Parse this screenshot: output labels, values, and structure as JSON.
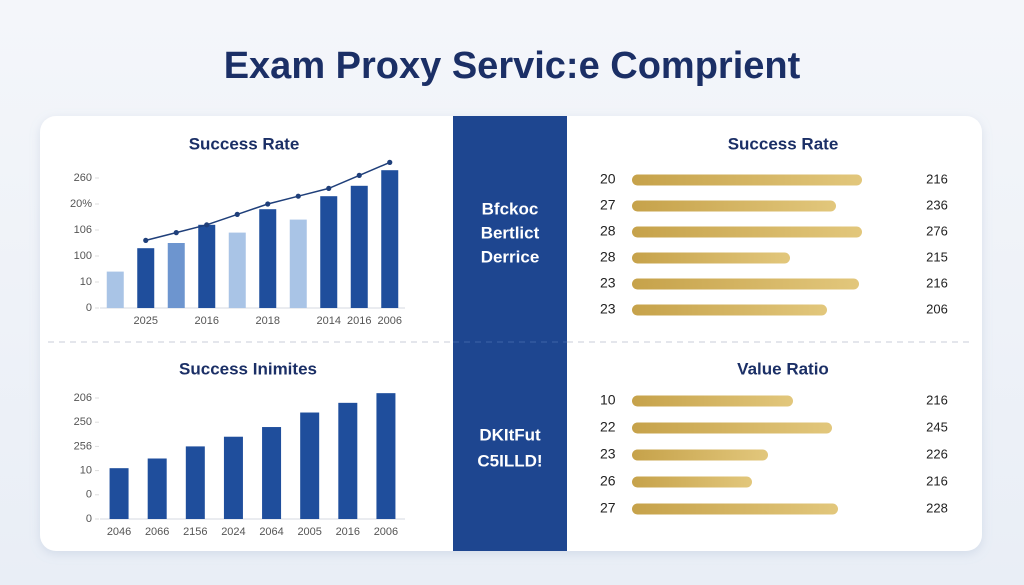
{
  "title": "Exam Proxy Servic:e Comprient",
  "center": {
    "top": [
      "Bfckoc",
      "Bertlict",
      "Derrice"
    ],
    "bottom": [
      "DKItFut",
      "C5ILLD!"
    ]
  },
  "chart_data": [
    {
      "type": "bar",
      "title": "Success Rate",
      "categories": [
        null,
        "2025",
        null,
        "2016",
        null,
        "2018",
        null,
        "2014",
        "2016",
        "2006"
      ],
      "series": [
        {
          "colors": [
            "#a9c4e6",
            "#1f4e9c",
            "#6d95cf",
            "#1f4e9c",
            "#a9c4e6",
            "#1f4e9c",
            "#a9c4e6",
            "#1f4e9c",
            "#1f4e9c",
            "#1f4e9c"
          ],
          "values": [
            1.4,
            2.3,
            2.5,
            3.2,
            2.9,
            3.8,
            3.4,
            4.3,
            4.7,
            5.3
          ]
        },
        {
          "type": "line",
          "color": "#1f3f7a",
          "values": [
            null,
            2.6,
            2.9,
            3.2,
            3.6,
            4.0,
            4.3,
            4.6,
            5.1,
            5.6
          ]
        }
      ],
      "ylim": [
        0,
        5.8
      ],
      "yticks": [
        0,
        {
          "value": 1,
          "label": "10"
        },
        {
          "value": 2,
          "label": "100"
        },
        {
          "value": 3,
          "label": "106"
        },
        {
          "value": 4,
          "label": "20%"
        },
        {
          "value": 5,
          "label": "260"
        }
      ]
    },
    {
      "type": "bar",
      "title": "Success Inimites",
      "categories": [
        "2046",
        "2066",
        "2156",
        "2024",
        "2064",
        "2005",
        "2016",
        "2006"
      ],
      "series": [
        {
          "colors": [
            "#1f4e9c",
            "#1f4e9c",
            "#1f4e9c",
            "#1f4e9c",
            "#1f4e9c",
            "#1f4e9c",
            "#1f4e9c",
            "#1f4e9c"
          ],
          "values": [
            2.1,
            2.5,
            3.0,
            3.4,
            3.8,
            4.4,
            4.8,
            5.2
          ]
        }
      ],
      "ylim": [
        0,
        5.3
      ],
      "yticks": [
        0,
        {
          "value": 1,
          "label": "0"
        },
        {
          "value": 2,
          "label": "10"
        },
        {
          "value": 3,
          "label": "256"
        },
        {
          "value": 4,
          "label": "250"
        },
        {
          "value": 5,
          "label": "206"
        }
      ]
    },
    {
      "type": "hbar",
      "title": "Success Rate",
      "categories": [
        "20",
        "27",
        "28",
        "28",
        "23",
        "23"
      ],
      "values": [
        230,
        204,
        230,
        158,
        227,
        195
      ],
      "totals": [
        216,
        236,
        276,
        215,
        216,
        206
      ],
      "xlim": [
        0,
        250
      ],
      "color": "#d2b25e"
    },
    {
      "type": "hbar",
      "title": "Value Ratio",
      "categories": [
        "10",
        "22",
        "23",
        "26",
        "27"
      ],
      "values": [
        161,
        200,
        136,
        120,
        206
      ],
      "totals": [
        216,
        245,
        226,
        216,
        228
      ],
      "xlim": [
        0,
        250
      ],
      "color": "#d2b25e"
    }
  ]
}
